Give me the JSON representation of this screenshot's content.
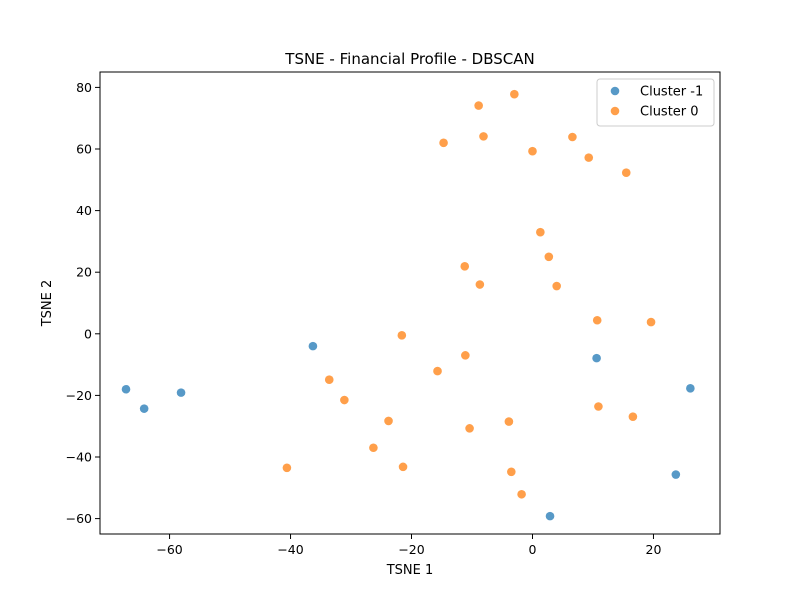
{
  "chart_data": {
    "type": "scatter",
    "title": "TSNE - Financial Profile - DBSCAN",
    "xlabel": "TSNE 1",
    "ylabel": "TSNE 2",
    "xlim": [
      -71.5,
      31
    ],
    "ylim": [
      -65,
      85
    ],
    "xticks": [
      -60,
      -40,
      -20,
      0,
      20
    ],
    "yticks": [
      -60,
      -40,
      -20,
      0,
      20,
      40,
      60,
      80
    ],
    "xtick_labels": [
      "−60",
      "−40",
      "−20",
      "0",
      "20"
    ],
    "ytick_labels": [
      "−60",
      "−40",
      "−20",
      "0",
      "20",
      "40",
      "60",
      "80"
    ],
    "grid": false,
    "legend_position": "top-right",
    "series": [
      {
        "name": "Cluster -1",
        "color": "#1f77b4",
        "points": [
          [
            -67.2,
            -18
          ],
          [
            -64.2,
            -24.3
          ],
          [
            -58.1,
            -19.1
          ],
          [
            -36.3,
            -4
          ],
          [
            10.6,
            -7.9
          ],
          [
            26.1,
            -17.7
          ],
          [
            23.7,
            -45.7
          ],
          [
            2.9,
            -59.2
          ]
        ]
      },
      {
        "name": "Cluster 0",
        "color": "#ff7f0e",
        "points": [
          [
            -3,
            77.8
          ],
          [
            -8.9,
            74.1
          ],
          [
            -8.1,
            64.1
          ],
          [
            -14.7,
            62
          ],
          [
            6.6,
            63.9
          ],
          [
            0,
            59.3
          ],
          [
            9.3,
            57.2
          ],
          [
            15.5,
            52.3
          ],
          [
            1.3,
            33
          ],
          [
            2.7,
            25
          ],
          [
            4,
            15.5
          ],
          [
            -11.2,
            21.9
          ],
          [
            -8.7,
            16
          ],
          [
            10.7,
            4.4
          ],
          [
            19.6,
            3.8
          ],
          [
            -21.6,
            -0.5
          ],
          [
            -11.1,
            -7
          ],
          [
            -15.7,
            -12.1
          ],
          [
            -33.6,
            -14.9
          ],
          [
            -31.1,
            -21.5
          ],
          [
            10.9,
            -23.6
          ],
          [
            16.6,
            -26.9
          ],
          [
            -23.8,
            -28.3
          ],
          [
            -3.9,
            -28.5
          ],
          [
            -10.4,
            -30.7
          ],
          [
            -26.3,
            -37
          ],
          [
            -40.6,
            -43.5
          ],
          [
            -21.4,
            -43.2
          ],
          [
            -3.5,
            -44.8
          ],
          [
            -1.8,
            -52.1
          ]
        ]
      }
    ]
  }
}
